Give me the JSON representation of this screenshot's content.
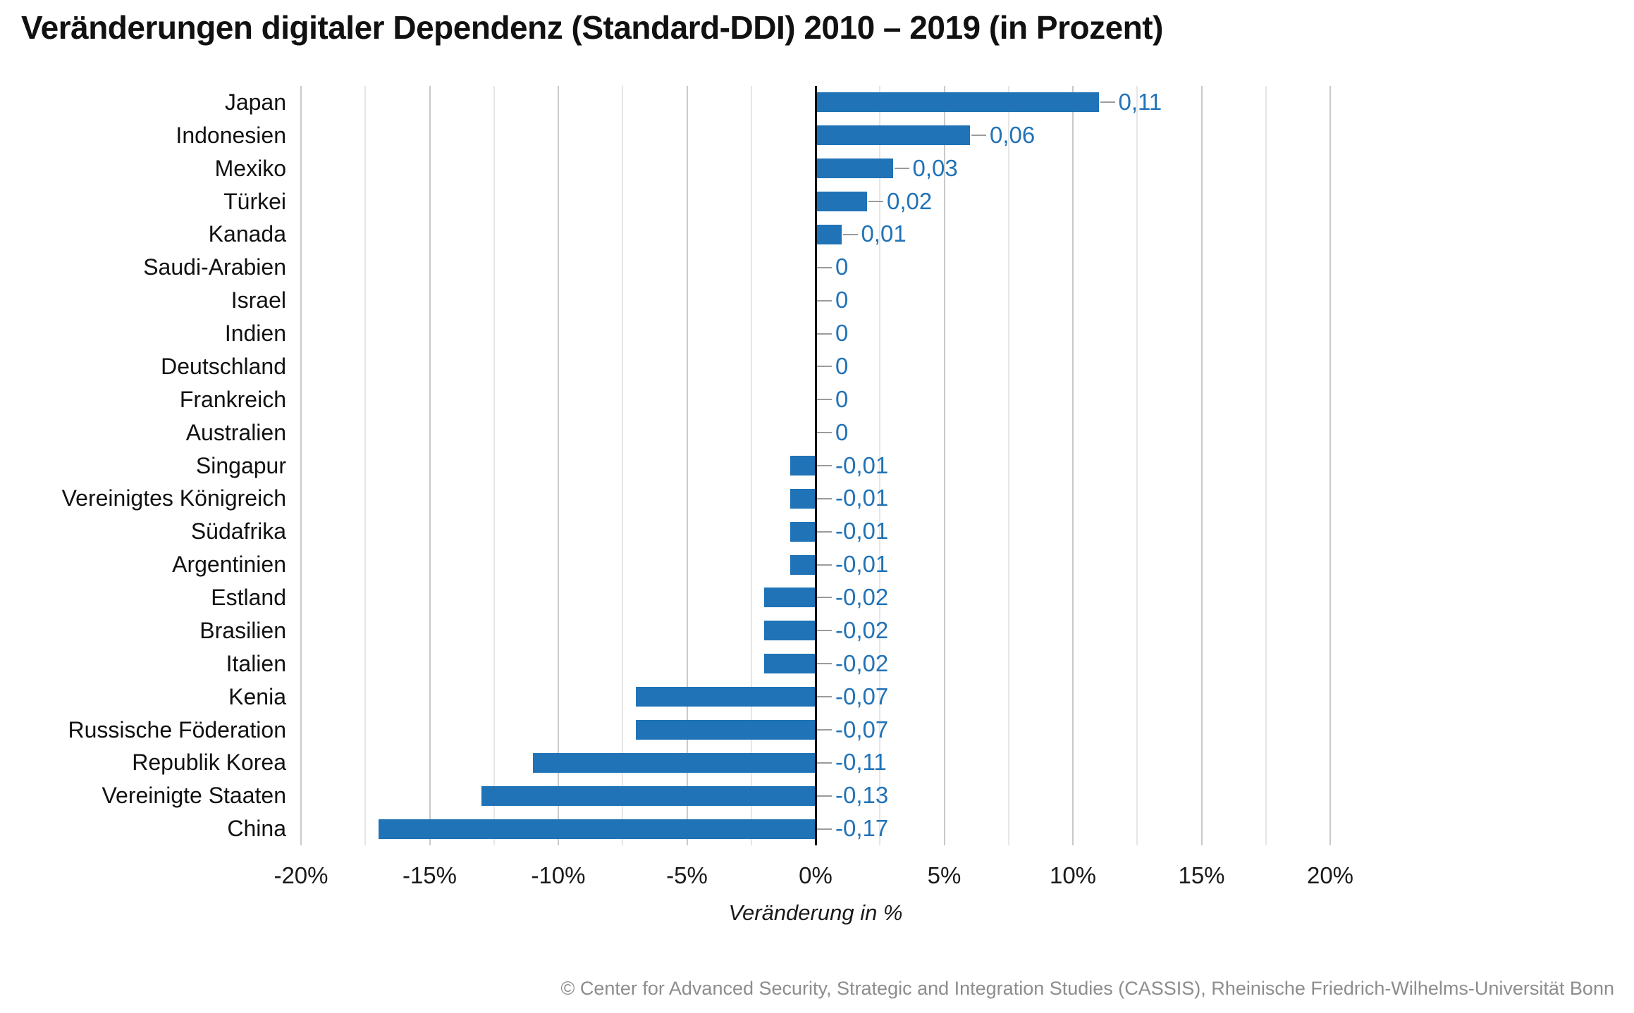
{
  "title": "Veränderungen digitaler Dependenz (Standard-DDI) 2010 – 2019 (in Prozent)",
  "footer": "© Center for Advanced Security, Strategic and Integration Studies (CASSIS), Rheinische Friedrich-Wilhelms-Universität Bonn",
  "colors": {
    "bar": "#1F73B6",
    "value_label": "#2273B6",
    "grid_major": "#C9C9C9",
    "grid_minor": "#E6E6E6",
    "zero_line": "#000000",
    "leader_line": "#9B9B9B",
    "footer_text": "#8D8D8D"
  },
  "chart_data": {
    "type": "bar",
    "orientation": "horizontal",
    "title": "Veränderungen digitaler Dependenz (Standard-DDI) 2010 – 2019 (in Prozent)",
    "xlabel": "Veränderung in %",
    "ylabel": "",
    "xlim": [
      -20,
      20
    ],
    "grid": true,
    "grid_step_pct": 2.5,
    "legend": false,
    "x_ticks": [
      "-20%",
      "-15%",
      "-10%",
      "-5%",
      "0%",
      "5%",
      "10%",
      "15%",
      "20%"
    ],
    "x_tick_values": [
      -20,
      -15,
      -10,
      -5,
      0,
      5,
      10,
      15,
      20
    ],
    "categories": [
      "Japan",
      "Indonesien",
      "Mexiko",
      "Türkei",
      "Kanada",
      "Saudi-Arabien",
      "Israel",
      "Indien",
      "Deutschland",
      "Frankreich",
      "Australien",
      "Singapur",
      "Vereinigtes Königreich",
      "Südafrika",
      "Argentinien",
      "Estland",
      "Brasilien",
      "Italien",
      "Kenia",
      "Russische Föderation",
      "Republik Korea",
      "Vereinigte Staaten",
      "China"
    ],
    "values_pct": [
      11,
      6,
      3,
      2,
      1,
      0,
      0,
      0,
      0,
      0,
      0,
      -1,
      -1,
      -1,
      -1,
      -2,
      -2,
      -2,
      -7,
      -7,
      -11,
      -13,
      -17
    ],
    "values_ddi": [
      0.11,
      0.06,
      0.03,
      0.02,
      0.01,
      0,
      0,
      0,
      0,
      0,
      0,
      -0.01,
      -0.01,
      -0.01,
      -0.01,
      -0.02,
      -0.02,
      -0.02,
      -0.07,
      -0.07,
      -0.11,
      -0.13,
      -0.17
    ],
    "value_labels": [
      "0,11",
      "0,06",
      "0,03",
      "0,02",
      "0,01",
      "0",
      "0",
      "0",
      "0",
      "0",
      "0",
      "-0,01",
      "-0,01",
      "-0,01",
      "-0,01",
      "-0,02",
      "-0,02",
      "-0,02",
      "-0,07",
      "-0,07",
      "-0,11",
      "-0,13",
      "-0,17"
    ]
  }
}
